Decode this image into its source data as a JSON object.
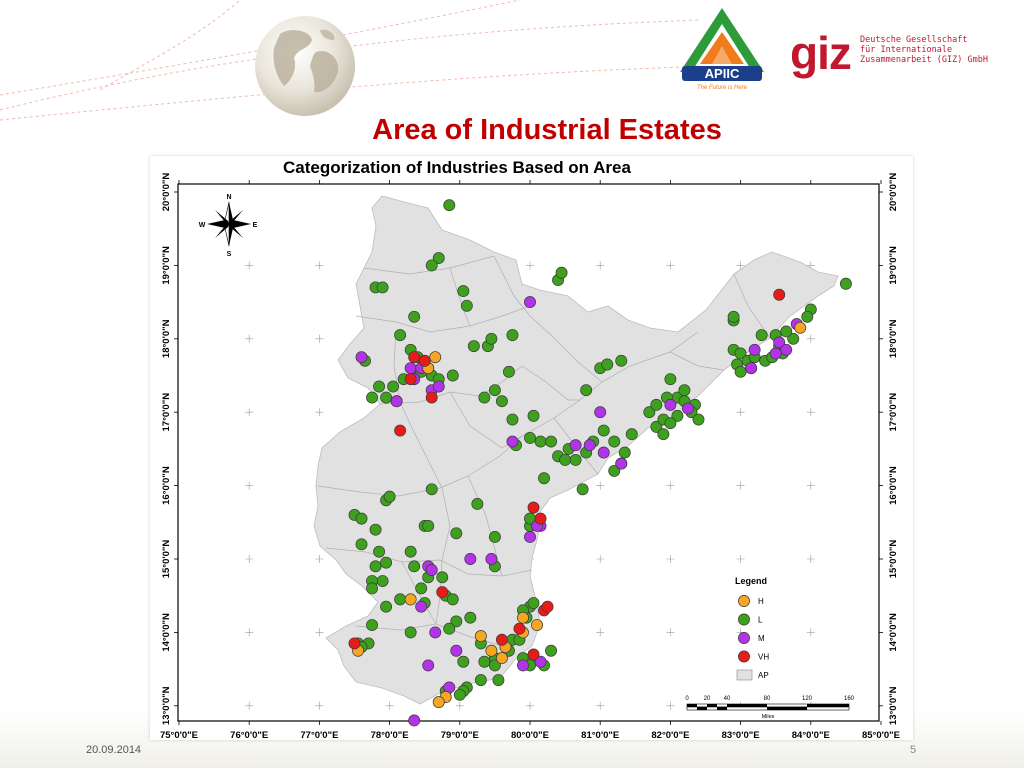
{
  "slide": {
    "title": "Area of Industrial Estates",
    "date": "20.09.2014",
    "slide_number": "5"
  },
  "logos": {
    "apiic": {
      "name": "APIIC",
      "tagline": "The Future is Here",
      "colors": [
        "#2e9b3a",
        "#f07c1c",
        "#1b3f8b"
      ]
    },
    "giz": {
      "wordmark": "giz",
      "lines": [
        "Deutsche Gesellschaft",
        "für Internationale",
        "Zusammenarbeit (GIZ) GmbH"
      ],
      "color": "#c0182e"
    }
  },
  "map": {
    "title": "Categorization of Industries Based on Area",
    "x_ticks": [
      "75°0'0\"E",
      "76°0'0\"E",
      "77°0'0\"E",
      "78°0'0\"E",
      "79°0'0\"E",
      "80°0'0\"E",
      "81°0'0\"E",
      "82°0'0\"E",
      "83°0'0\"E",
      "84°0'0\"E",
      "85°0'0\"E"
    ],
    "y_ticks": [
      "20°0'0\"N",
      "19°0'0\"N",
      "18°0'0\"N",
      "17°0'0\"N",
      "16°0'0\"N",
      "15°0'0\"N",
      "14°0'0\"N",
      "13°0'0\"N"
    ],
    "lon_range": [
      75,
      85
    ],
    "lat_range": [
      12.85,
      20.05
    ],
    "north_arrow": {
      "N": "N",
      "S": "S",
      "E": "E",
      "W": "W"
    },
    "legend": {
      "title": "Legend",
      "items": [
        {
          "code": "H",
          "label": "H",
          "color": "#f5a623"
        },
        {
          "code": "L",
          "label": "L",
          "color": "#3ea11e"
        },
        {
          "code": "M",
          "label": "M",
          "color": "#b233e8"
        },
        {
          "code": "VH",
          "label": "VH",
          "color": "#e81b1b"
        },
        {
          "code": "AP",
          "label": "AP",
          "color": "#e1e1e1"
        }
      ]
    },
    "scale_bar": {
      "labels": [
        "0",
        "20",
        "40",
        "80",
        "120",
        "160"
      ],
      "unit": "Miles"
    },
    "land_color": "#e1e1e1",
    "estates": {
      "L": [
        [
          78.85,
          19.82
        ],
        [
          78.7,
          19.1
        ],
        [
          78.6,
          19.0
        ],
        [
          77.8,
          18.7
        ],
        [
          77.9,
          18.7
        ],
        [
          79.05,
          18.65
        ],
        [
          79.1,
          18.45
        ],
        [
          80.4,
          18.8
        ],
        [
          80.45,
          18.9
        ],
        [
          78.15,
          18.05
        ],
        [
          78.3,
          17.85
        ],
        [
          78.4,
          17.75
        ],
        [
          78.5,
          17.7
        ],
        [
          78.55,
          17.6
        ],
        [
          78.6,
          17.5
        ],
        [
          78.7,
          17.45
        ],
        [
          78.35,
          17.5
        ],
        [
          78.45,
          17.55
        ],
        [
          78.2,
          17.45
        ],
        [
          78.05,
          17.35
        ],
        [
          77.95,
          17.2
        ],
        [
          78.1,
          17.15
        ],
        [
          77.65,
          17.7
        ],
        [
          77.85,
          17.35
        ],
        [
          77.75,
          17.2
        ],
        [
          78.35,
          18.3
        ],
        [
          78.9,
          17.5
        ],
        [
          79.2,
          17.9
        ],
        [
          79.4,
          17.9
        ],
        [
          79.5,
          17.3
        ],
        [
          79.75,
          18.05
        ],
        [
          79.45,
          18.0
        ],
        [
          79.7,
          17.55
        ],
        [
          79.35,
          17.2
        ],
        [
          79.6,
          17.15
        ],
        [
          79.75,
          16.9
        ],
        [
          80.05,
          16.95
        ],
        [
          80.15,
          16.6
        ],
        [
          80.0,
          16.65
        ],
        [
          79.8,
          16.55
        ],
        [
          80.3,
          16.6
        ],
        [
          80.4,
          16.4
        ],
        [
          80.5,
          16.35
        ],
        [
          80.65,
          16.35
        ],
        [
          80.55,
          16.5
        ],
        [
          80.8,
          16.45
        ],
        [
          80.9,
          16.6
        ],
        [
          81.05,
          16.75
        ],
        [
          81.2,
          16.6
        ],
        [
          81.35,
          16.45
        ],
        [
          81.45,
          16.7
        ],
        [
          81.2,
          16.2
        ],
        [
          81.3,
          16.3
        ],
        [
          80.2,
          16.1
        ],
        [
          80.75,
          15.95
        ],
        [
          81.0,
          17.6
        ],
        [
          81.1,
          17.65
        ],
        [
          81.3,
          17.7
        ],
        [
          80.8,
          17.3
        ],
        [
          81.7,
          17.0
        ],
        [
          81.8,
          16.8
        ],
        [
          81.9,
          16.9
        ],
        [
          82.1,
          17.2
        ],
        [
          82.2,
          17.15
        ],
        [
          82.35,
          17.1
        ],
        [
          82.3,
          17.0
        ],
        [
          82.4,
          16.9
        ],
        [
          82.1,
          16.95
        ],
        [
          82.0,
          16.85
        ],
        [
          81.9,
          16.7
        ],
        [
          82.2,
          17.3
        ],
        [
          81.95,
          17.2
        ],
        [
          82.0,
          17.45
        ],
        [
          81.8,
          17.1
        ],
        [
          82.9,
          17.85
        ],
        [
          83.0,
          17.8
        ],
        [
          83.1,
          17.7
        ],
        [
          83.2,
          17.75
        ],
        [
          82.95,
          17.65
        ],
        [
          83.35,
          17.7
        ],
        [
          83.45,
          17.75
        ],
        [
          83.55,
          17.9
        ],
        [
          83.6,
          17.8
        ],
        [
          83.5,
          18.05
        ],
        [
          83.75,
          18.0
        ],
        [
          82.9,
          18.25
        ],
        [
          82.9,
          18.3
        ],
        [
          83.0,
          17.55
        ],
        [
          83.15,
          17.6
        ],
        [
          83.65,
          18.1
        ],
        [
          84.0,
          18.4
        ],
        [
          83.95,
          18.3
        ],
        [
          84.5,
          18.75
        ],
        [
          83.3,
          18.05
        ],
        [
          77.5,
          15.6
        ],
        [
          77.6,
          15.55
        ],
        [
          77.8,
          15.4
        ],
        [
          77.95,
          15.8
        ],
        [
          78.0,
          15.85
        ],
        [
          78.5,
          15.45
        ],
        [
          78.55,
          15.45
        ],
        [
          78.3,
          15.1
        ],
        [
          78.6,
          15.95
        ],
        [
          79.25,
          15.75
        ],
        [
          78.95,
          15.35
        ],
        [
          79.5,
          15.3
        ],
        [
          77.6,
          15.2
        ],
        [
          77.85,
          15.1
        ],
        [
          77.95,
          14.95
        ],
        [
          77.9,
          14.7
        ],
        [
          77.75,
          14.7
        ],
        [
          77.8,
          14.9
        ],
        [
          77.75,
          14.6
        ],
        [
          78.35,
          14.9
        ],
        [
          78.45,
          14.6
        ],
        [
          78.55,
          14.75
        ],
        [
          78.75,
          14.75
        ],
        [
          78.8,
          14.5
        ],
        [
          78.9,
          14.45
        ],
        [
          78.15,
          14.45
        ],
        [
          77.95,
          14.35
        ],
        [
          78.5,
          14.4
        ],
        [
          78.3,
          14.0
        ],
        [
          78.95,
          14.15
        ],
        [
          79.15,
          14.2
        ],
        [
          78.85,
          14.05
        ],
        [
          77.75,
          14.1
        ],
        [
          77.7,
          13.85
        ],
        [
          77.55,
          13.85
        ],
        [
          77.6,
          13.8
        ],
        [
          79.05,
          13.6
        ],
        [
          79.35,
          13.6
        ],
        [
          79.5,
          13.65
        ],
        [
          79.5,
          13.55
        ],
        [
          79.7,
          13.75
        ],
        [
          79.9,
          13.65
        ],
        [
          79.75,
          13.9
        ],
        [
          79.95,
          14.2
        ],
        [
          80.0,
          14.35
        ],
        [
          80.05,
          14.4
        ],
        [
          79.9,
          14.3
        ],
        [
          80.2,
          13.55
        ],
        [
          80.05,
          13.65
        ],
        [
          80.0,
          13.55
        ],
        [
          79.55,
          13.35
        ],
        [
          79.3,
          13.35
        ],
        [
          79.1,
          13.25
        ],
        [
          79.05,
          13.2
        ],
        [
          79.0,
          13.15
        ],
        [
          78.8,
          13.2
        ],
        [
          79.5,
          14.9
        ],
        [
          80.0,
          15.45
        ],
        [
          80.0,
          15.55
        ],
        [
          79.3,
          13.85
        ],
        [
          79.85,
          13.9
        ],
        [
          80.3,
          13.75
        ]
      ],
      "M": [
        [
          80.0,
          18.5
        ],
        [
          80.65,
          16.55
        ],
        [
          81.3,
          16.3
        ],
        [
          81.05,
          16.45
        ],
        [
          80.85,
          16.55
        ],
        [
          79.75,
          16.6
        ],
        [
          80.15,
          15.45
        ],
        [
          80.0,
          15.3
        ],
        [
          79.15,
          15.0
        ],
        [
          79.45,
          15.0
        ],
        [
          77.6,
          17.75
        ],
        [
          78.35,
          17.45
        ],
        [
          78.1,
          17.15
        ],
        [
          78.3,
          17.6
        ],
        [
          78.6,
          17.3
        ],
        [
          78.7,
          17.35
        ],
        [
          78.45,
          17.6
        ],
        [
          82.0,
          17.1
        ],
        [
          82.25,
          17.05
        ],
        [
          83.55,
          17.95
        ],
        [
          83.65,
          17.85
        ],
        [
          83.8,
          18.2
        ],
        [
          83.5,
          17.8
        ],
        [
          83.15,
          17.6
        ],
        [
          83.2,
          17.85
        ],
        [
          78.45,
          14.35
        ],
        [
          78.95,
          13.75
        ],
        [
          78.65,
          14.0
        ],
        [
          78.55,
          13.55
        ],
        [
          78.85,
          13.25
        ],
        [
          78.55,
          14.9
        ],
        [
          78.6,
          14.85
        ],
        [
          80.1,
          15.45
        ],
        [
          80.15,
          13.6
        ],
        [
          78.35,
          12.8
        ],
        [
          79.9,
          13.55
        ],
        [
          81.0,
          17.0
        ]
      ],
      "H": [
        [
          78.65,
          17.75
        ],
        [
          78.55,
          17.6
        ],
        [
          79.3,
          13.95
        ],
        [
          79.6,
          13.65
        ],
        [
          79.65,
          13.8
        ],
        [
          79.9,
          14.0
        ],
        [
          80.1,
          14.1
        ],
        [
          79.9,
          14.2
        ],
        [
          78.8,
          13.12
        ],
        [
          78.7,
          13.05
        ],
        [
          77.55,
          13.75
        ],
        [
          78.3,
          14.45
        ],
        [
          83.85,
          18.15
        ],
        [
          79.45,
          13.75
        ]
      ],
      "VH": [
        [
          83.55,
          18.6
        ],
        [
          78.3,
          17.45
        ],
        [
          78.6,
          17.2
        ],
        [
          78.15,
          16.75
        ],
        [
          80.05,
          15.7
        ],
        [
          80.15,
          15.55
        ],
        [
          80.2,
          14.3
        ],
        [
          80.25,
          14.35
        ],
        [
          79.85,
          14.05
        ],
        [
          79.6,
          13.9
        ],
        [
          78.75,
          14.55
        ],
        [
          80.05,
          13.7
        ],
        [
          77.5,
          13.85
        ],
        [
          78.5,
          17.7
        ],
        [
          78.35,
          17.75
        ]
      ]
    }
  }
}
